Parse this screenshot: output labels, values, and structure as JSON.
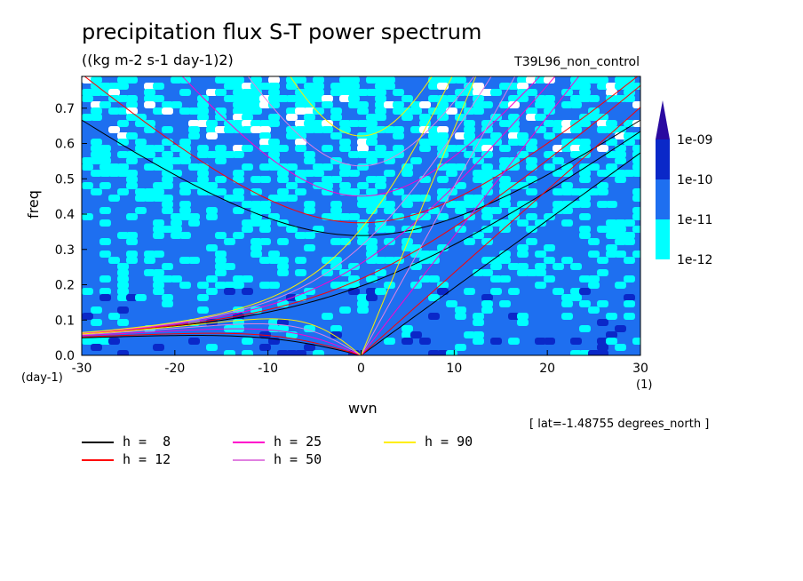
{
  "title": "precipitation flux S-T power spectrum",
  "units": "((kg m-2 s-1 day-1)2)",
  "run_name": "T39L96_non_control",
  "note": "[ lat=-1.48755 degrees_north ]",
  "chart_data": {
    "type": "heatmap",
    "xlabel": "wvn",
    "ylabel": "freq",
    "x_unit": "(1)",
    "y_unit": "(day-1)",
    "xlim": [
      -30,
      30
    ],
    "ylim": [
      0,
      0.79
    ],
    "x_ticks": [
      -30,
      -20,
      -10,
      0,
      10,
      20,
      30
    ],
    "y_ticks": [
      0.0,
      0.1,
      0.2,
      0.3,
      0.4,
      0.5,
      0.6,
      0.7
    ],
    "x_tick_labels": [
      "-30",
      "-20",
      "-10",
      "0",
      "10",
      "20",
      "30"
    ],
    "y_tick_labels": [
      "0.0",
      "0.1",
      "0.2",
      "0.3",
      "0.4",
      "0.5",
      "0.6",
      "0.7"
    ],
    "colorbar": {
      "levels": [
        "1e-12",
        "1e-11",
        "1e-10",
        "1e-09"
      ],
      "colors": [
        "#00ffff",
        "#1e6ff0",
        "#0a28c8",
        "#2a0aa0"
      ],
      "below_color": "#ffffff"
    },
    "series": [
      {
        "name": "h =  8",
        "color": "#000000",
        "h": 8
      },
      {
        "name": "h = 12",
        "color": "#ff0000",
        "h": 12
      },
      {
        "name": "h = 25",
        "color": "#ff00cc",
        "h": 25
      },
      {
        "name": "h = 50",
        "color": "#e080e0",
        "h": 50
      },
      {
        "name": "h = 90",
        "color": "#ffee00",
        "h": 90
      }
    ]
  }
}
